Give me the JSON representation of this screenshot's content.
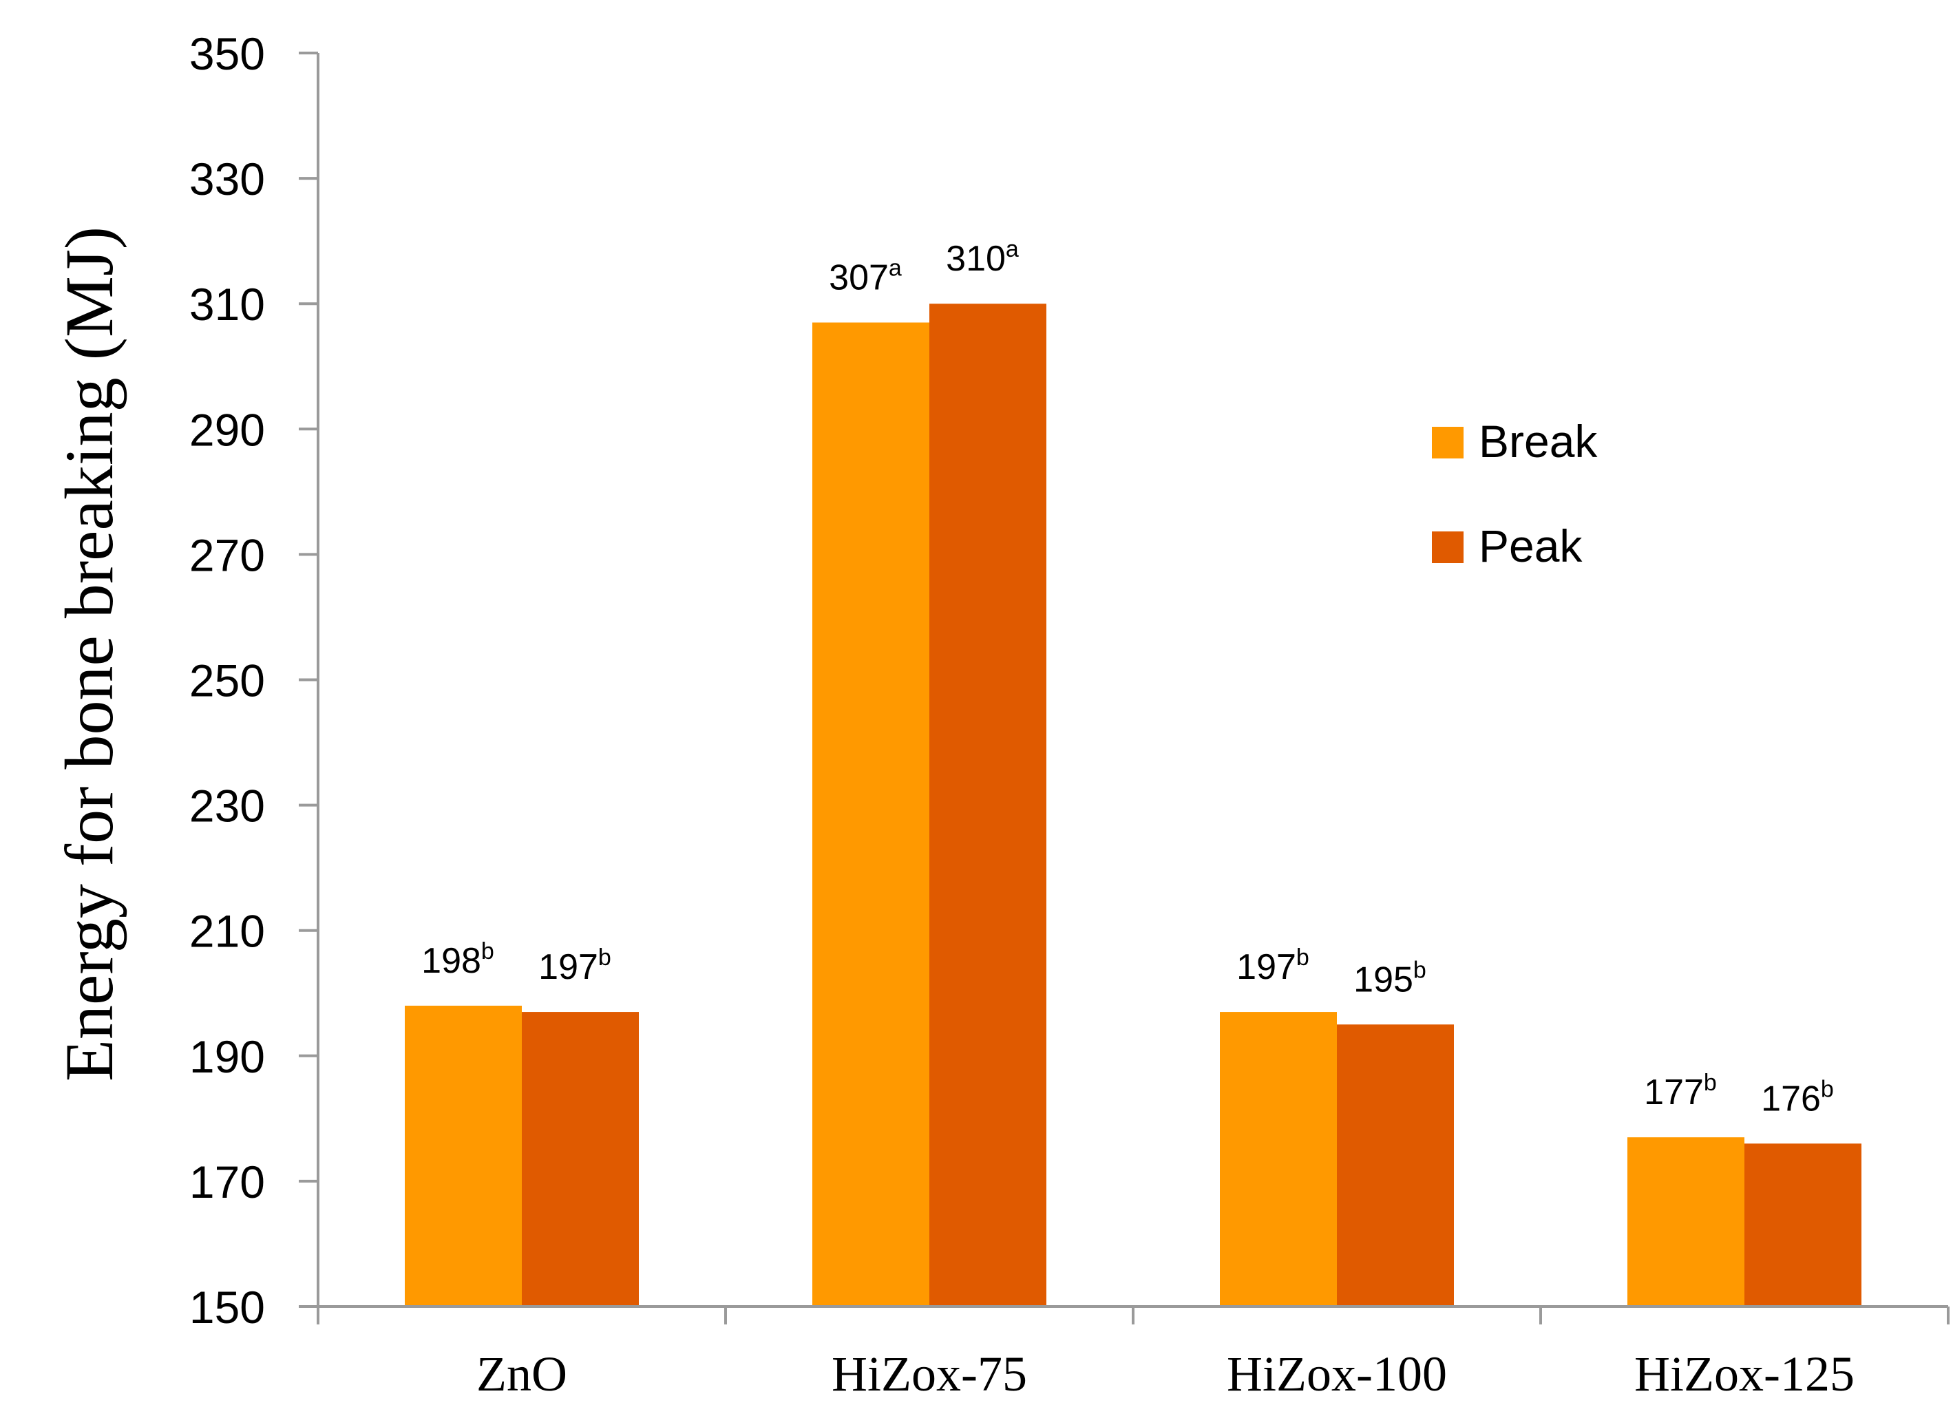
{
  "chart_data": {
    "type": "bar",
    "ylabel": "Energy for bone breaking (MJ)",
    "xlabel": "",
    "ylim": [
      150,
      350
    ],
    "yticks": [
      150,
      170,
      190,
      210,
      230,
      250,
      270,
      290,
      310,
      330,
      350
    ],
    "grid": false,
    "legend_position": "right",
    "categories": [
      "ZnO",
      "HiZox-75",
      "HiZox-100",
      "HiZox-125"
    ],
    "series": [
      {
        "name": "Break",
        "color": "#FF9900",
        "values": [
          198,
          307,
          197,
          177
        ],
        "labels": [
          "198",
          "307",
          "197",
          "177"
        ],
        "superscripts": [
          "b",
          "a",
          "b",
          "b"
        ]
      },
      {
        "name": "Peak",
        "color": "#E05A00",
        "values": [
          197,
          310,
          195,
          176
        ],
        "labels": [
          "197",
          "310",
          "195",
          "176"
        ],
        "superscripts": [
          "b",
          "a",
          "b",
          "b"
        ]
      }
    ]
  }
}
